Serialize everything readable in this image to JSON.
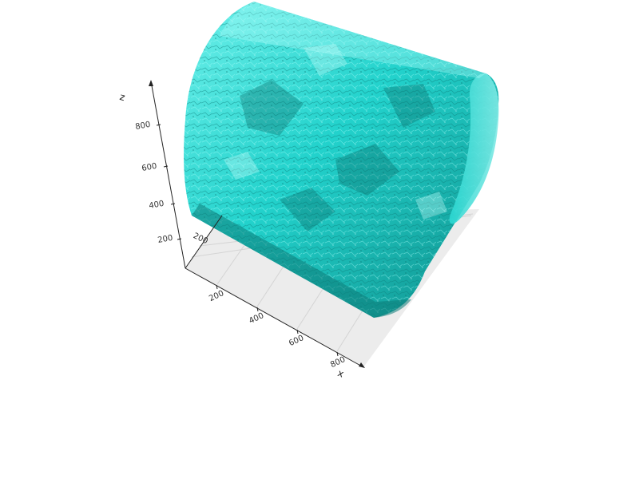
{
  "chart_data": {
    "type": "surface3d",
    "description_object": "cylindrical rock-core volume rendering",
    "title": "",
    "xlabel": "x",
    "ylabel": "",
    "zlabel": "z",
    "x_ticks": [
      "200",
      "400",
      "600",
      "800"
    ],
    "y_ticks": [
      "200"
    ],
    "z_ticks": [
      "200",
      "400",
      "600",
      "800"
    ],
    "xlim": [
      0,
      900
    ],
    "zlim": [
      0,
      1000
    ],
    "grid": true,
    "colors": {
      "surface": "#1ed6d0",
      "surface_light": "#7ff5f0",
      "surface_dark": "#0e8f8c",
      "floor": "#ececec",
      "grid": "#d4d4d4",
      "axis": "#222222"
    }
  }
}
